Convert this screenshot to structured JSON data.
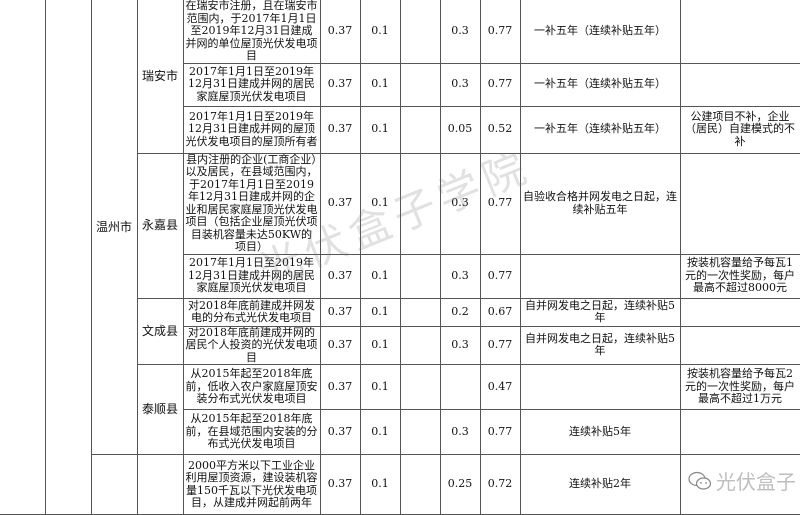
{
  "city": "温州市",
  "rows": [
    {
      "county": "瑞安市",
      "scope": "在瑞安市注册，且在瑞安市范围内，于2017年1月1日至2019年12月31日建成并网的单位屋顶光伏发电项目",
      "national": "0.37",
      "province": "0.1",
      "local": "0.3",
      "total": "0.77",
      "period": "一补五年（连续补贴五年）",
      "note": ""
    },
    {
      "county": "",
      "scope": "2017年1月1日至2019年12月31日建成并网的居民家庭屋顶光伏发电项目",
      "national": "0.37",
      "province": "0.1",
      "local": "0.3",
      "total": "0.77",
      "period": "一补五年（连续补贴五年）",
      "note": ""
    },
    {
      "county": "",
      "scope": "2017年1月1日至2019年12月31日建成并网的屋顶光伏发电项目的屋顶所有者",
      "national": "0.37",
      "province": "0.1",
      "local": "0.05",
      "total": "0.52",
      "period": "一补五年（连续补贴五年）",
      "note": "公建项目不补，企业（居民）自建模式的不补"
    },
    {
      "county": "永嘉县",
      "scope": "县内注册的企业(工商企业）以及居民，在县域范围内，于2017年1月1日至2019年12月31日建成并网的企业和居民家庭屋顶光伏发电项目（包括企业屋顶光伏项目装机容量未达50KW的项目）",
      "national": "0.37",
      "province": "0.1",
      "local": "0.3",
      "total": "0.77",
      "period": "自验收合格并网发电之日起，连续补贴五年",
      "note": ""
    },
    {
      "county": "",
      "scope": "2017年1月1日至2019年12月31日建成并网的居民家庭屋顶光伏发电项目",
      "national": "0.37",
      "province": "0.1",
      "local": "0.3",
      "total": "0.77",
      "period": "",
      "note": "按装机容量给予每瓦1元的一次性奖励，每户最高不超过8000元"
    },
    {
      "county": "文成县",
      "scope": "对2018年底前建成并网发电的分布式光伏发电项目",
      "national": "0.37",
      "province": "0.1",
      "local": "0.2",
      "total": "0.67",
      "period": "自并网发电之日起，连续补贴5年",
      "note": ""
    },
    {
      "county": "",
      "scope": "对2018年底前建成并网的居民个人投资的光伏发电项目",
      "national": "0.37",
      "province": "0.1",
      "local": "0.3",
      "total": "0.77",
      "period": "自并网发电之日起，连续补贴5年",
      "note": ""
    },
    {
      "county": "泰顺县",
      "scope": "从2015年起至2018年底前，低收入农户家庭屋顶安装分布式光伏发电项目",
      "national": "0.37",
      "province": "0.1",
      "local": "",
      "total": "0.47",
      "period": "",
      "note": "按装机容量给予每瓦2元的一次性奖励，每户最高不超过1万元"
    },
    {
      "county": "",
      "scope": "从2015年起至2018年底前，在县域范围内安装的分布式光伏发电项目",
      "national": "0.37",
      "province": "0.1",
      "local": "0.3",
      "total": "0.77",
      "period": "连续补贴5年",
      "note": ""
    },
    {
      "county": "",
      "scope": "2000平方米以下工业企业利用屋顶资源，建设装机容量150千瓦以下光伏发电项目，从建成并网起前两年",
      "national": "0.37",
      "province": "0.1",
      "local": "0.25",
      "total": "0.72",
      "period": "连续补贴2年",
      "note": ""
    }
  ],
  "watermark": {
    "center": "光伏盒子学院",
    "corner": "光伏盒子",
    "corner_icon": "wechat-icon"
  }
}
